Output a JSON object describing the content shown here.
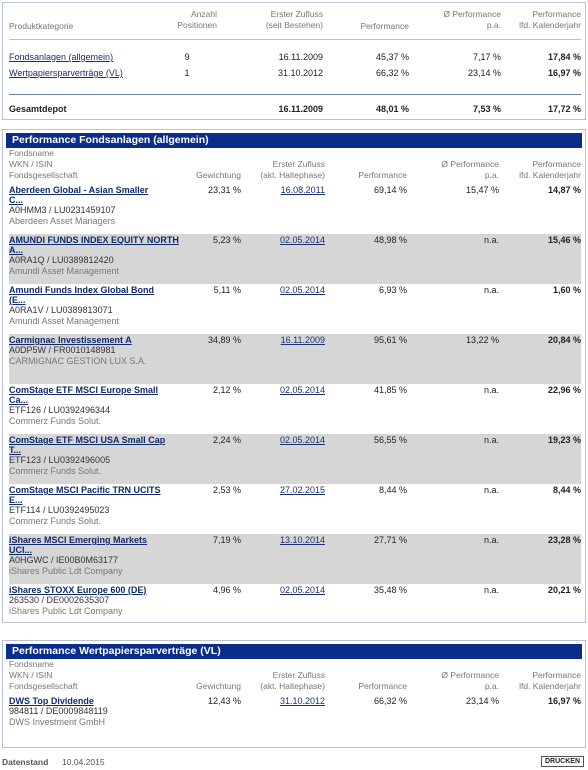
{
  "overview": {
    "headers": {
      "category": "Produktkategorie",
      "count": [
        "Anzahl",
        "Positionen"
      ],
      "first": [
        "Erster Zufluss",
        "(seit Bestehen)"
      ],
      "perf": "Performance",
      "avg": [
        "Ø Performance",
        "p.a."
      ],
      "year": [
        "Performance",
        "lfd. Kalenderjahr"
      ]
    },
    "rows": [
      {
        "category": "Fondsanlagen (allgemein)",
        "count": "9",
        "first": "16.11.2009",
        "perf": "45,37 %",
        "avg": "7,17 %",
        "year": "17,84 %"
      },
      {
        "category": "Wertpapiersparverträge (VL)",
        "count": "1",
        "first": "31.10.2012",
        "perf": "66,32 %",
        "avg": "23,14 %",
        "year": "16,97 %"
      }
    ],
    "total": {
      "label": "Gesamtdepot",
      "first": "16.11.2009",
      "perf": "48,01 %",
      "avg": "7,53 %",
      "year": "17,72 %"
    }
  },
  "funds_section": {
    "title": "Performance Fondsanlagen (allgemein)",
    "headers": {
      "name": [
        "Fondsname",
        "WKN / ISIN",
        "Fondsgesellschaft"
      ],
      "weight": "Gewichtung",
      "first": [
        "Erster Zufluss",
        "(akt. Haltephase)"
      ],
      "perf": "Performance",
      "avg": [
        "Ø Performance",
        "p.a."
      ],
      "year": [
        "Performance",
        "lfd. Kalenderjahr"
      ]
    },
    "rows": [
      {
        "name1": "Aberdeen Global - Asian Smaller",
        "name2": "C...",
        "ids": "A0HMM3 /  LU0231459107",
        "kvg": "Aberdeen Asset Managers",
        "weight": "23,31 %",
        "first": "16.08.2011",
        "perf": "69,14 %",
        "avg": "15,47 %",
        "year": "14,87 %",
        "grey": false
      },
      {
        "name1": "AMUNDI FUNDS INDEX EQUITY NORTH",
        "name2": "A...",
        "ids": "A0RA1Q /  LU0389812420",
        "kvg": "Amundi Asset Management",
        "weight": "5,23 %",
        "first": "02.05.2014",
        "perf": "48,98 %",
        "avg": "n.a.",
        "year": "15,46 %",
        "grey": true
      },
      {
        "name1": "Amundi Funds Index Global Bond",
        "name2": "(E...",
        "ids": "A0RA1V /  LU0389813071",
        "kvg": "Amundi Asset Management",
        "weight": "5,11 %",
        "first": "02.05.2014",
        "perf": "6,93 %",
        "avg": "n.a.",
        "year": "1,60 %",
        "grey": false
      },
      {
        "name1": "Carmignac Investissement A",
        "name2": "",
        "ids": "A0DP5W /  FR0010148981",
        "kvg": "CARMIGNAC GESTION LUX S.A.",
        "weight": "34,89 %",
        "first": "16.11.2009",
        "perf": "95,61 %",
        "avg": "13,22 %",
        "year": "20,84 %",
        "grey": true
      },
      {
        "name1": "ComStage ETF MSCI Europe Small",
        "name2": "Ca...",
        "ids": "ETF126 /  LU0392496344",
        "kvg": "Commerz Funds Solut.",
        "weight": "2,12 %",
        "first": "02.05.2014",
        "perf": "41,85 %",
        "avg": "n.a.",
        "year": "22,96 %",
        "grey": false
      },
      {
        "name1": "ComStage ETF MSCI USA Small Cap",
        "name2": "T...",
        "ids": "ETF123 /  LU0392496005",
        "kvg": "Commerz Funds Solut.",
        "weight": "2,24 %",
        "first": "02.05.2014",
        "perf": "56,55 %",
        "avg": "n.a.",
        "year": "19,23 %",
        "grey": true
      },
      {
        "name1": "ComStage MSCI Pacific TRN UCITS",
        "name2": "E...",
        "ids": "ETF114 /  LU0392495023",
        "kvg": "Commerz Funds Solut.",
        "weight": "2,53 %",
        "first": "27.02.2015",
        "perf": "8,44 %",
        "avg": "n.a.",
        "year": "8,44 %",
        "grey": false
      },
      {
        "name1": "iShares MSCI Emerging Markets",
        "name2": "UCI...",
        "ids": "A0HGWC /  IE00B0M63177",
        "kvg": "iShares Public Ldt Company",
        "weight": "7,19 %",
        "first": "13.10.2014",
        "perf": "27,71 %",
        "avg": "n.a.",
        "year": "23,28 %",
        "grey": true
      },
      {
        "name1": "iShares STOXX Europe 600 (DE)",
        "name2": "",
        "ids": "263530 /  DE0002635307",
        "kvg": "iShares Public Ldt Company",
        "weight": "4,96 %",
        "first": "02.05.2014",
        "perf": "35,48 %",
        "avg": "n.a.",
        "year": "20,21 %",
        "grey": false
      }
    ]
  },
  "vl_section": {
    "title": "Performance Wertpapiersparverträge (VL)",
    "headers": {
      "name": [
        "Fondsname",
        "WKN / ISIN",
        "Fondsgesellschaft"
      ],
      "weight": "Gewichtung",
      "first": [
        "Erster Zufluss",
        "(akt. Haltephase)"
      ],
      "perf": "Performance",
      "avg": [
        "Ø Performance",
        "p.a."
      ],
      "year": [
        "Performance",
        "lfd. Kalenderjahr"
      ]
    },
    "rows": [
      {
        "name1": "DWS Top Dividende",
        "name2": "",
        "ids": "984811 /  DE0009848119",
        "kvg": "DWS Investment GmbH",
        "weight": "12,43 %",
        "first": "31.10.2012",
        "perf": "66,32 %",
        "avg": "23,14 %",
        "year": "16,97 %",
        "grey": false
      }
    ]
  },
  "footer": {
    "label": "Datenstand",
    "date": "10.04.2015",
    "print": "DRUCKEN"
  }
}
